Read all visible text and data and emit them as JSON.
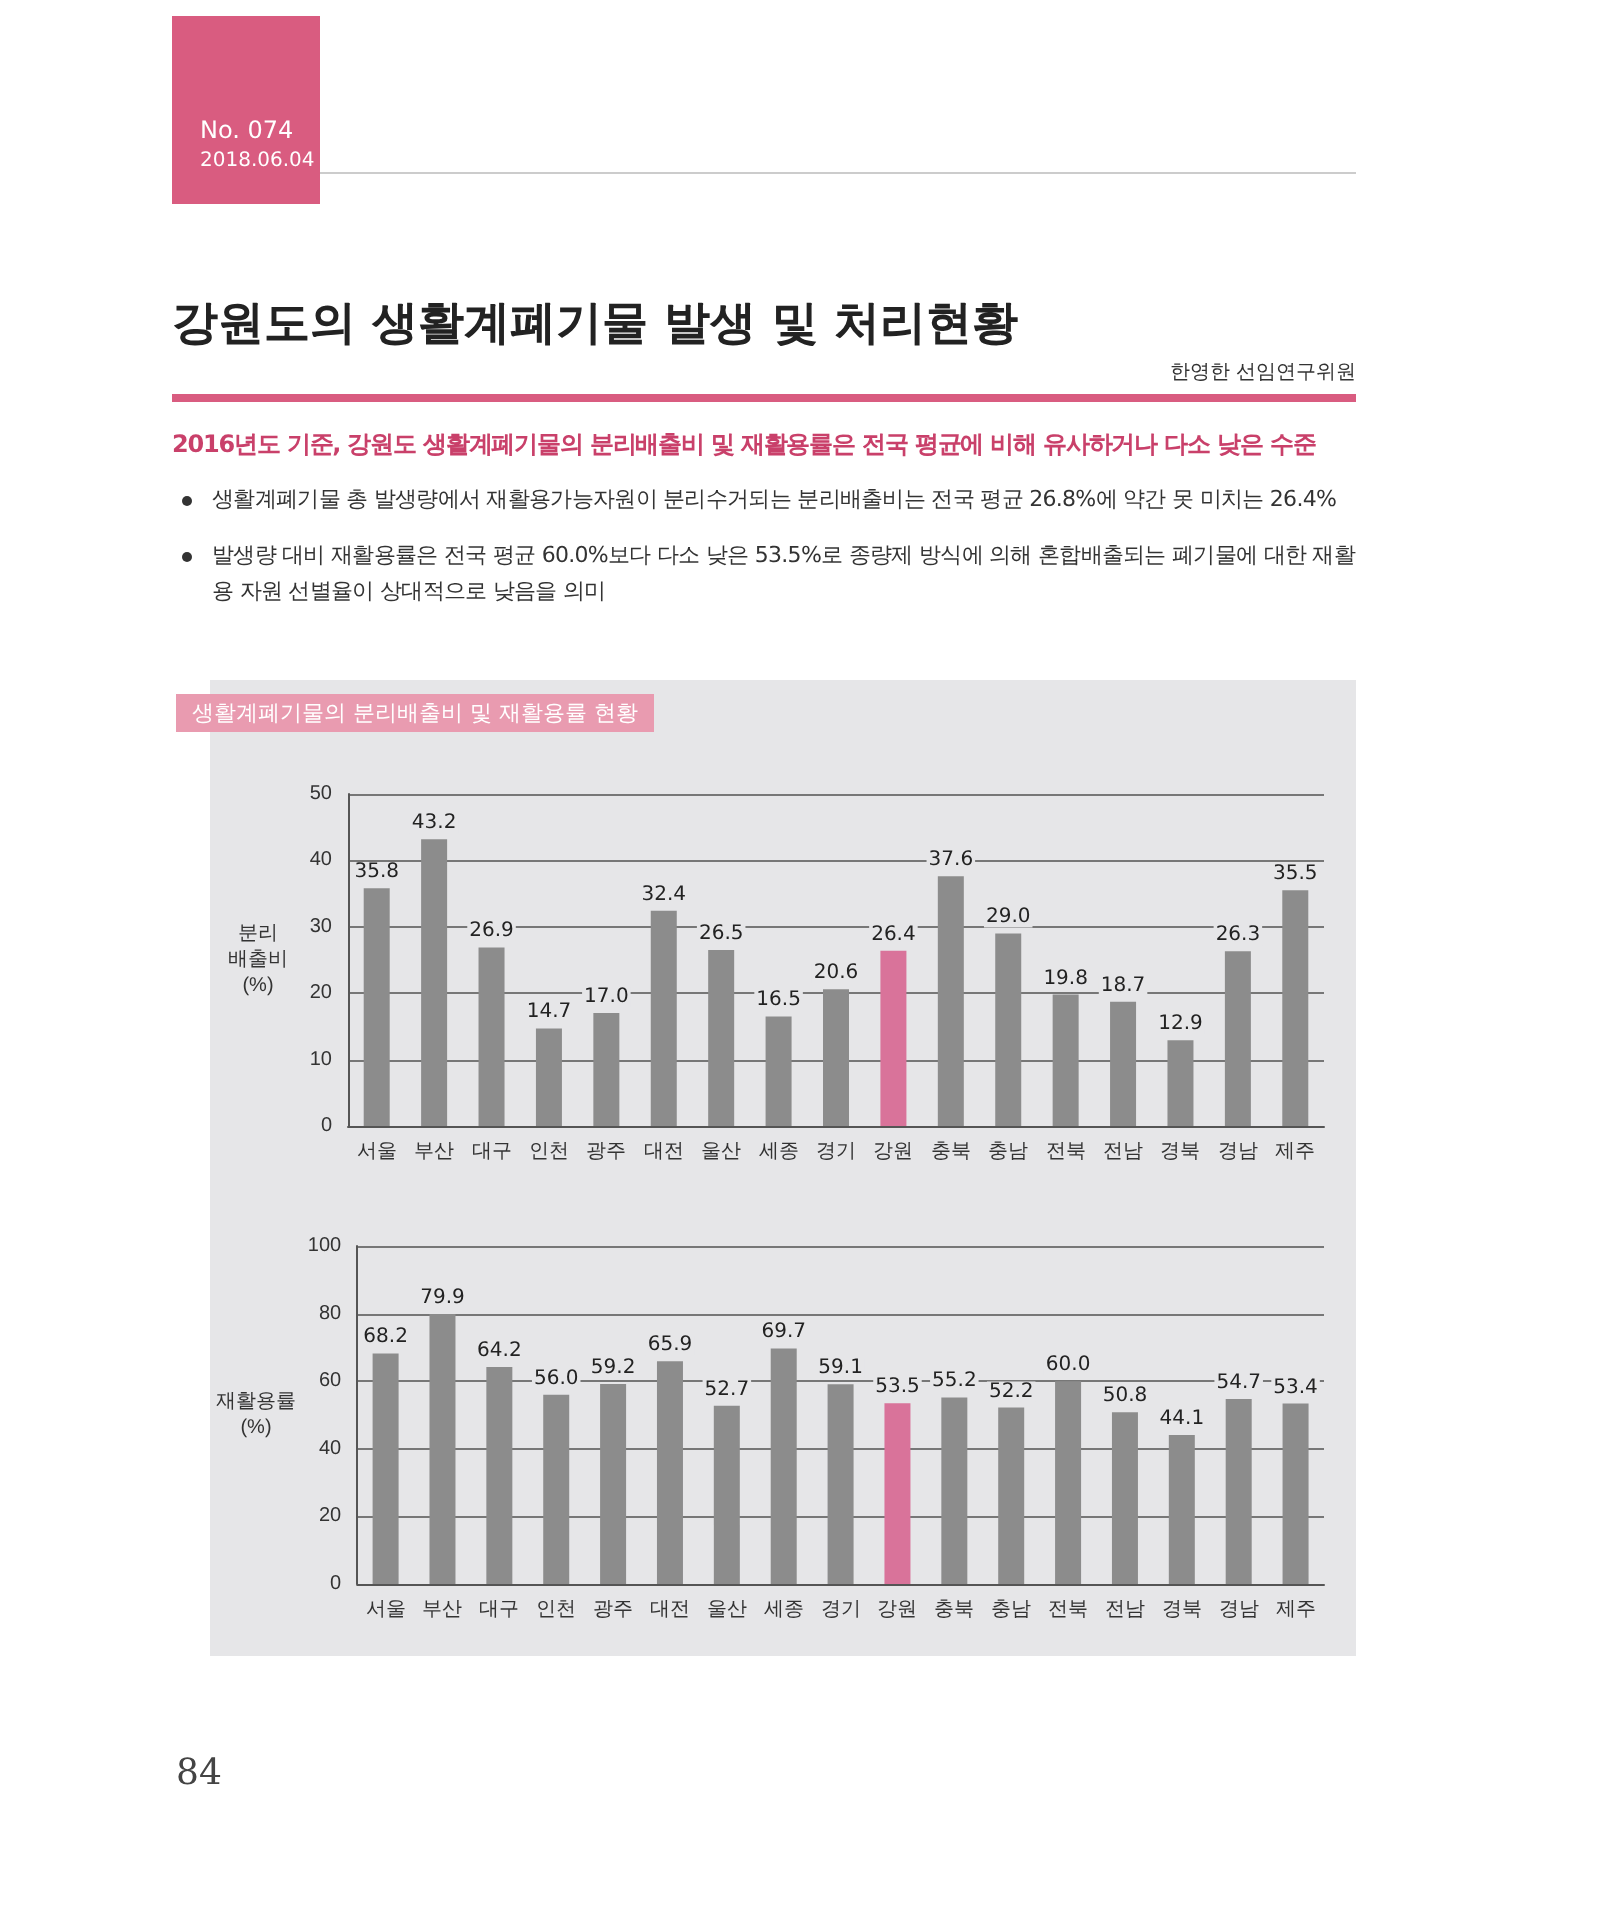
{
  "chart_data": [
    {
      "type": "bar",
      "title": "강원도의 생활계폐기물 발생 및 처리현황",
      "subtitle": "2016년도 기준, 강원도 생활계폐기물의 분리배출비 및 재활용률은 전국 평균에 비해 유사하거나 다소 낮은 수준",
      "annotations": [
        "No. 074",
        "2018.06.04",
        "한영한 선임연구위원",
        "생활계폐기물 총 발생량에서 재활용가능자원이 분리수거되는 분리배출비는 전국 평균 26.8%에 약간 못 미치는 26.4%",
        "발생량 대비 재활용률은 전국 평균 60.0%보다 다소 낮은 53.5%로 종량제 방식에 의해 혼합배출되는 폐기물에 대한 재활용 자원 선별율이 상대적으로 낮음을 의미",
        "생활계폐기물의 분리배출비 및 재활용률 현황",
        "84"
      ],
      "ylabel": "분리\n배출비\n(%)",
      "categories": [
        "서울",
        "부산",
        "대구",
        "인천",
        "광주",
        "대전",
        "울산",
        "세종",
        "경기",
        "강원",
        "충북",
        "충남",
        "전북",
        "전남",
        "경북",
        "경남",
        "제주"
      ],
      "values": [
        35.8,
        43.2,
        26.9,
        14.7,
        17.0,
        32.4,
        26.5,
        16.5,
        20.6,
        26.4,
        37.6,
        29.0,
        19.8,
        18.7,
        12.9,
        26.3,
        35.5
      ],
      "colors": [
        "#8c8c8c",
        "#8c8c8c",
        "#8c8c8c",
        "#8c8c8c",
        "#8c8c8c",
        "#8c8c8c",
        "#8c8c8c",
        "#8c8c8c",
        "#8c8c8c",
        "#d9739a",
        "#8c8c8c",
        "#8c8c8c",
        "#8c8c8c",
        "#8c8c8c",
        "#8c8c8c",
        "#8c8c8c",
        "#8c8c8c"
      ],
      "value_labels": [
        "35.8",
        "43.2",
        "26.9",
        "14.7",
        "17.0",
        "32.4",
        "26.5",
        "16.5",
        "20.6",
        "26.4",
        "37.6",
        "29.0",
        "19.8",
        "18.7",
        "12.9",
        "26.3",
        "35.5"
      ],
      "ylim": [
        0,
        50
      ],
      "yticks": [
        0,
        10,
        20,
        30,
        40,
        50
      ],
      "grid": "y"
    },
    {
      "type": "bar",
      "ylabel": "재활용률\n(%)",
      "categories": [
        "서울",
        "부산",
        "대구",
        "인천",
        "광주",
        "대전",
        "울산",
        "세종",
        "경기",
        "강원",
        "충북",
        "충남",
        "전북",
        "전남",
        "경북",
        "경남",
        "제주"
      ],
      "values": [
        68.2,
        79.9,
        64.2,
        56.0,
        59.2,
        65.9,
        52.7,
        69.7,
        59.1,
        53.5,
        55.2,
        52.2,
        60.0,
        50.8,
        44.1,
        54.7,
        53.4
      ],
      "colors": [
        "#8c8c8c",
        "#8c8c8c",
        "#8c8c8c",
        "#8c8c8c",
        "#8c8c8c",
        "#8c8c8c",
        "#8c8c8c",
        "#8c8c8c",
        "#8c8c8c",
        "#d9739a",
        "#8c8c8c",
        "#8c8c8c",
        "#8c8c8c",
        "#8c8c8c",
        "#8c8c8c",
        "#8c8c8c",
        "#8c8c8c"
      ],
      "value_labels": [
        "68.2",
        "79.9",
        "64.2",
        "56.0",
        "59.2",
        "65.9",
        "52.7",
        "69.7",
        "59.1",
        "53.5",
        "55.2",
        "52.2",
        "60.0",
        "50.8",
        "44.1",
        "54.7",
        "53.4"
      ],
      "ylim": [
        0,
        100
      ],
      "yticks": [
        0,
        20,
        40,
        60,
        80,
        100
      ],
      "grid": "y"
    }
  ]
}
